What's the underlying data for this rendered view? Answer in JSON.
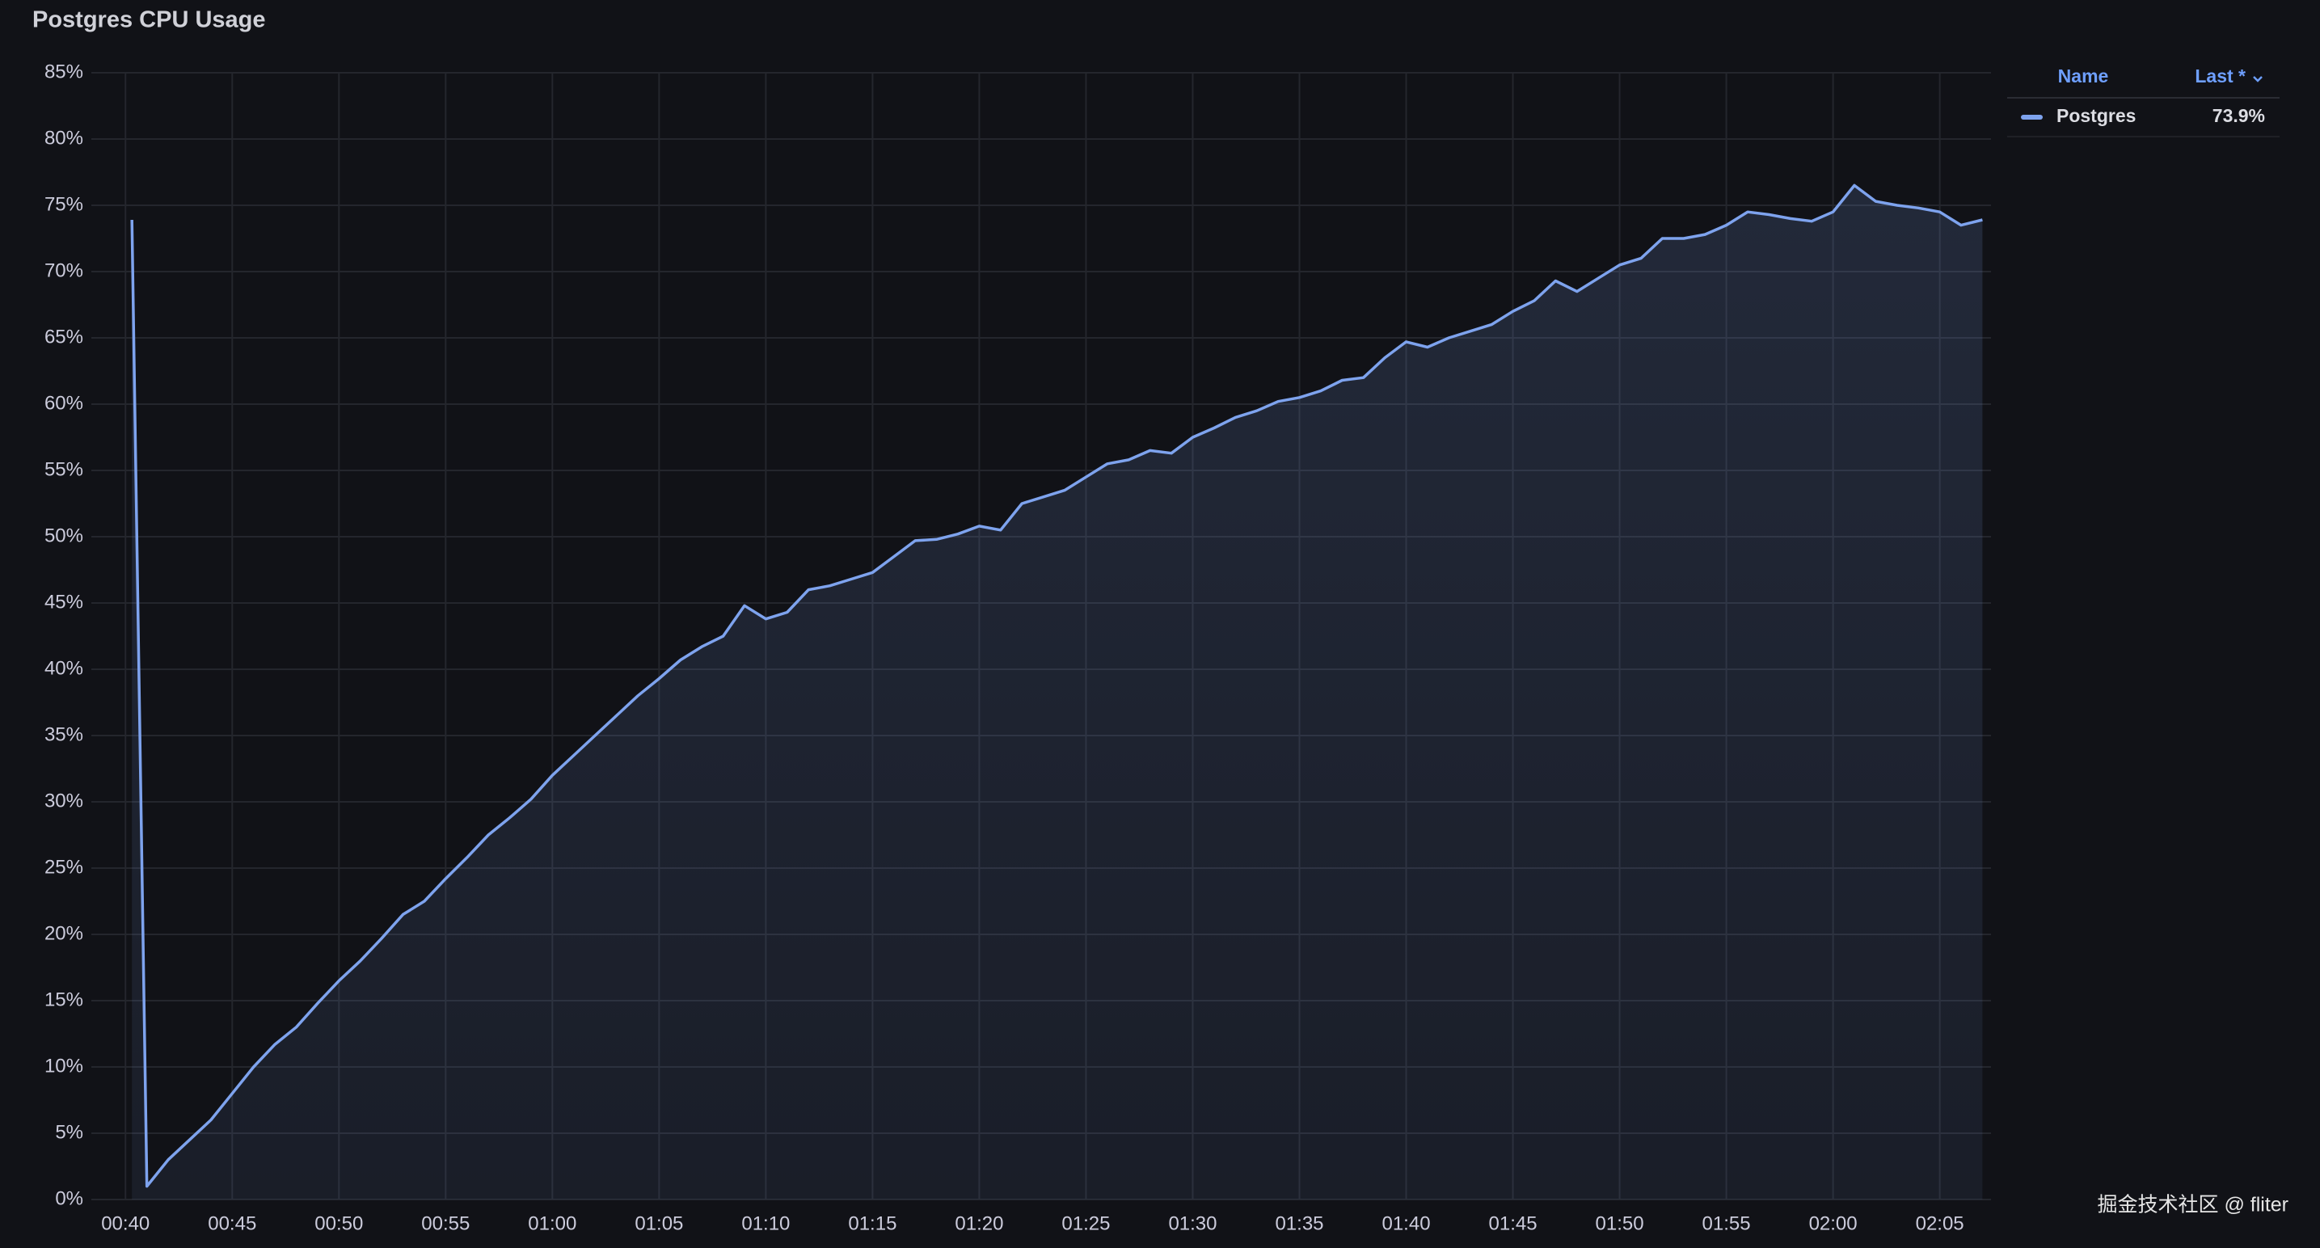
{
  "chart_data": {
    "type": "area",
    "title": "Postgres CPU Usage",
    "x": [
      40.3,
      41,
      42,
      43,
      44,
      45,
      46,
      47,
      48,
      49,
      50,
      51,
      52,
      53,
      54,
      55,
      56,
      57,
      58,
      59,
      60,
      61,
      62,
      63,
      64,
      65,
      66,
      67,
      68,
      69,
      70,
      71,
      72,
      73,
      74,
      75,
      76,
      77,
      78,
      79,
      80,
      81,
      82,
      83,
      84,
      85,
      86,
      87,
      88,
      89,
      90,
      91,
      92,
      93,
      94,
      95,
      96,
      97,
      98,
      99,
      100,
      101,
      102,
      103,
      104,
      105,
      106,
      107,
      108,
      109,
      110,
      111,
      112,
      113,
      114,
      115,
      116,
      117,
      118,
      119,
      120,
      121,
      122,
      123,
      124,
      125,
      126,
      127
    ],
    "series": [
      {
        "name": "Postgres",
        "color": "#7ea3ee",
        "values": [
          73.9,
          1,
          3,
          4.5,
          6,
          8,
          10,
          11.7,
          13,
          14.8,
          16.5,
          18,
          19.7,
          21.5,
          22.5,
          24.2,
          25.8,
          27.5,
          28.8,
          30.2,
          32,
          33.5,
          35,
          36.5,
          38,
          39.3,
          40.7,
          41.7,
          42.5,
          44.8,
          43.8,
          44.3,
          46,
          46.3,
          46.8,
          47.3,
          48.5,
          49.7,
          49.8,
          50.2,
          50.8,
          50.5,
          52.5,
          53,
          53.5,
          54.5,
          55.5,
          55.8,
          56.5,
          56.3,
          57.5,
          58.2,
          59,
          59.5,
          60.2,
          60.5,
          61,
          61.8,
          62,
          63.5,
          64.7,
          64.3,
          65,
          65.5,
          66,
          67,
          67.8,
          69.3,
          68.5,
          69.5,
          70.5,
          71,
          72.5,
          72.5,
          72.8,
          73.5,
          74.5,
          74.3,
          74,
          73.8,
          74.5,
          76.5,
          75.3,
          75,
          74.8,
          74.5,
          73.5,
          73.9
        ],
        "last": 73.9,
        "last_label": "73.9%"
      }
    ],
    "xlim": [
      38.4,
      127.4
    ],
    "xticks": [
      {
        "value": 40,
        "label": "00:40"
      },
      {
        "value": 45,
        "label": "00:45"
      },
      {
        "value": 50,
        "label": "00:50"
      },
      {
        "value": 55,
        "label": "00:55"
      },
      {
        "value": 60,
        "label": "01:00"
      },
      {
        "value": 65,
        "label": "01:05"
      },
      {
        "value": 70,
        "label": "01:10"
      },
      {
        "value": 75,
        "label": "01:15"
      },
      {
        "value": 80,
        "label": "01:20"
      },
      {
        "value": 85,
        "label": "01:25"
      },
      {
        "value": 90,
        "label": "01:30"
      },
      {
        "value": 95,
        "label": "01:35"
      },
      {
        "value": 100,
        "label": "01:40"
      },
      {
        "value": 105,
        "label": "01:45"
      },
      {
        "value": 110,
        "label": "01:50"
      },
      {
        "value": 115,
        "label": "01:55"
      },
      {
        "value": 120,
        "label": "02:00"
      },
      {
        "value": 125,
        "label": "02:05"
      }
    ],
    "ylim": [
      0,
      85
    ],
    "yticks": [
      {
        "value": 0,
        "label": "0%"
      },
      {
        "value": 5,
        "label": "5%"
      },
      {
        "value": 10,
        "label": "10%"
      },
      {
        "value": 15,
        "label": "15%"
      },
      {
        "value": 20,
        "label": "20%"
      },
      {
        "value": 25,
        "label": "25%"
      },
      {
        "value": 30,
        "label": "30%"
      },
      {
        "value": 35,
        "label": "35%"
      },
      {
        "value": 40,
        "label": "40%"
      },
      {
        "value": 45,
        "label": "45%"
      },
      {
        "value": 50,
        "label": "50%"
      },
      {
        "value": 55,
        "label": "55%"
      },
      {
        "value": 60,
        "label": "60%"
      },
      {
        "value": 65,
        "label": "65%"
      },
      {
        "value": 70,
        "label": "70%"
      },
      {
        "value": 75,
        "label": "75%"
      },
      {
        "value": 80,
        "label": "80%"
      },
      {
        "value": 85,
        "label": "85%"
      }
    ],
    "grid": true,
    "legend": {
      "position": "right",
      "name_header": "Name",
      "last_header": "Last *"
    },
    "watermark": "掘金技术社区 @ fliter"
  }
}
